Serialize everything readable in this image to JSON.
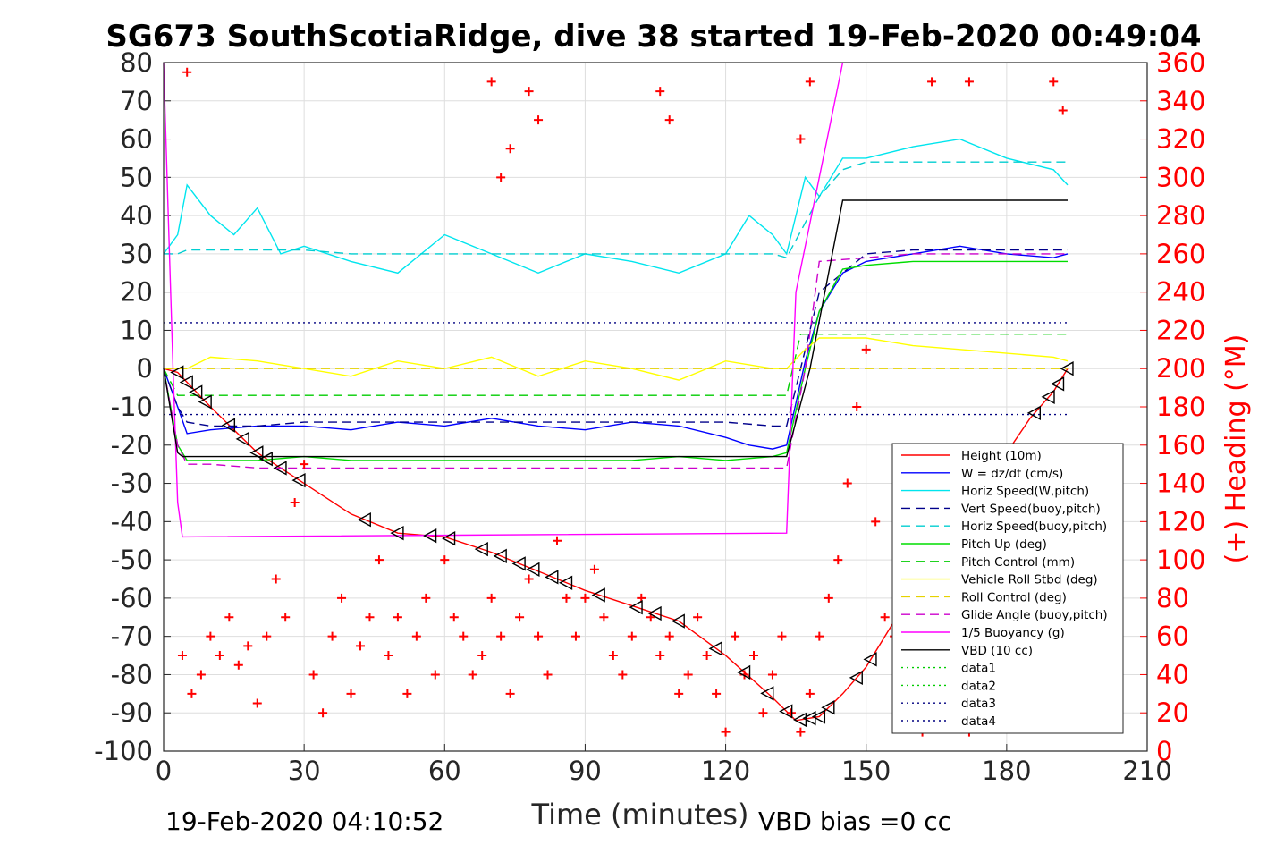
{
  "chart_data": {
    "type": "line",
    "title": "SG673 SouthScotiaRidge, dive 38 started 19-Feb-2020 00:49:04",
    "xlabel": "Time (minutes)",
    "ylabel_right": "(+) Heading (°M)",
    "xlim": [
      0,
      210
    ],
    "ylim": [
      -100,
      80
    ],
    "ylim_right": [
      0,
      360
    ],
    "xticks": [
      "0",
      "30",
      "60",
      "90",
      "120",
      "150",
      "180",
      "210"
    ],
    "yticks": [
      "80",
      "70",
      "60",
      "50",
      "40",
      "30",
      "20",
      "10",
      "0",
      "-10",
      "-20",
      "-30",
      "-40",
      "-50",
      "-60",
      "-70",
      "-80",
      "-90",
      "-100"
    ],
    "yticks_right": [
      "360",
      "340",
      "320",
      "300",
      "280",
      "260",
      "240",
      "220",
      "200",
      "180",
      "160",
      "140",
      "120",
      "100",
      "80",
      "60",
      "40",
      "20",
      "0"
    ],
    "grid": true,
    "legend_position": "lower-right",
    "footer_left": "19-Feb-2020 04:10:52",
    "footer_right": "VBD bias =0 cc",
    "series": [
      {
        "name": "Height (10m)",
        "color": "#ff0000",
        "style": "solid",
        "x": [
          0,
          3,
          10,
          20,
          30,
          40,
          50,
          60,
          70,
          80,
          90,
          100,
          110,
          120,
          130,
          135,
          140,
          145,
          150,
          160,
          170,
          180,
          185,
          190,
          193
        ],
        "y": [
          0,
          -1,
          -10,
          -22,
          -30,
          -38,
          -43,
          -44,
          -48,
          -53,
          -58,
          -62,
          -66,
          -75,
          -86,
          -92,
          -91,
          -85,
          -78,
          -58,
          -40,
          -22,
          -13,
          -6,
          0
        ]
      },
      {
        "name": "W = dz/dt (cm/s)",
        "color": "#0000ff",
        "style": "solid",
        "x": [
          0,
          3,
          5,
          10,
          20,
          30,
          40,
          50,
          60,
          70,
          80,
          90,
          100,
          110,
          120,
          125,
          130,
          133,
          137,
          140,
          145,
          150,
          160,
          170,
          180,
          190,
          193
        ],
        "y": [
          0,
          -10,
          -17,
          -16,
          -15,
          -15,
          -16,
          -14,
          -15,
          -13,
          -15,
          -16,
          -14,
          -15,
          -18,
          -20,
          -21,
          -20,
          2,
          15,
          25,
          28,
          30,
          32,
          30,
          29,
          30
        ]
      },
      {
        "name": "Horiz Speed(W,pitch)",
        "color": "#00e5ee",
        "style": "solid",
        "x": [
          0,
          3,
          5,
          10,
          15,
          20,
          25,
          30,
          40,
          50,
          60,
          70,
          80,
          90,
          100,
          110,
          120,
          125,
          130,
          133,
          137,
          140,
          145,
          150,
          160,
          170,
          180,
          190,
          193
        ],
        "y": [
          30,
          35,
          48,
          40,
          35,
          42,
          30,
          32,
          28,
          25,
          35,
          30,
          25,
          30,
          28,
          25,
          30,
          40,
          35,
          30,
          50,
          45,
          55,
          55,
          58,
          60,
          55,
          52,
          48
        ]
      },
      {
        "name": "Vert Speed(buoy,pitch)",
        "color": "#00008b",
        "style": "dashed",
        "x": [
          0,
          3,
          5,
          10,
          20,
          30,
          40,
          50,
          60,
          70,
          80,
          90,
          100,
          110,
          120,
          130,
          133,
          140,
          150,
          160,
          170,
          180,
          190,
          193
        ],
        "y": [
          0,
          -10,
          -14,
          -15,
          -15,
          -14,
          -14,
          -14,
          -14,
          -14,
          -14,
          -14,
          -14,
          -14,
          -14,
          -15,
          -15,
          20,
          30,
          31,
          31,
          31,
          31,
          31
        ]
      },
      {
        "name": "Horiz Speed(buoy,pitch)",
        "color": "#00ced1",
        "style": "dashed",
        "x": [
          0,
          3,
          5,
          10,
          20,
          30,
          40,
          50,
          60,
          70,
          80,
          90,
          100,
          110,
          120,
          130,
          133,
          140,
          145,
          150,
          160,
          170,
          180,
          190,
          193
        ],
        "y": [
          30,
          30,
          31,
          31,
          31,
          31,
          30,
          30,
          30,
          30,
          30,
          30,
          30,
          30,
          30,
          30,
          29,
          45,
          52,
          54,
          54,
          54,
          54,
          54,
          54
        ]
      },
      {
        "name": "Pitch Up (deg)",
        "color": "#00dd00",
        "style": "solid",
        "x": [
          0,
          3,
          5,
          10,
          20,
          30,
          40,
          50,
          60,
          70,
          80,
          90,
          100,
          110,
          120,
          130,
          133,
          137,
          140,
          145,
          150,
          160,
          170,
          180,
          190,
          193
        ],
        "y": [
          0,
          -20,
          -24,
          -24,
          -24,
          -23,
          -24,
          -24,
          -24,
          -24,
          -24,
          -24,
          -24,
          -23,
          -24,
          -23,
          -22,
          0,
          15,
          26,
          27,
          28,
          28,
          28,
          28,
          28
        ]
      },
      {
        "name": "Pitch Control (mm)",
        "color": "#00cc00",
        "style": "dashed",
        "x": [
          0,
          3,
          133,
          136,
          193
        ],
        "y": [
          0,
          -7,
          -7,
          9,
          9
        ]
      },
      {
        "name": "Vehicle Roll Stbd (deg)",
        "color": "#ffff00",
        "style": "solid",
        "x": [
          0,
          5,
          10,
          20,
          30,
          40,
          50,
          60,
          70,
          80,
          90,
          100,
          110,
          120,
          130,
          133,
          137,
          140,
          150,
          160,
          170,
          180,
          190,
          193
        ],
        "y": [
          0,
          0,
          3,
          2,
          0,
          -2,
          2,
          0,
          3,
          -2,
          2,
          0,
          -3,
          2,
          0,
          0,
          5,
          8,
          8,
          6,
          5,
          4,
          3,
          2
        ]
      },
      {
        "name": "Roll Control (deg)",
        "color": "#e6d200",
        "style": "dashed",
        "x": [
          0,
          193
        ],
        "y": [
          0,
          0
        ]
      },
      {
        "name": "Glide Angle (buoy,pitch)",
        "color": "#cc00cc",
        "style": "dashed",
        "x": [
          0,
          3,
          5,
          10,
          20,
          30,
          40,
          50,
          60,
          70,
          80,
          90,
          100,
          110,
          120,
          130,
          133,
          137,
          140,
          150,
          160,
          170,
          180,
          190,
          193
        ],
        "y": [
          0,
          -20,
          -25,
          -25,
          -26,
          -26,
          -26,
          -26,
          -26,
          -26,
          -26,
          -26,
          -26,
          -26,
          -26,
          -26,
          -26,
          0,
          28,
          29,
          30,
          30,
          30,
          30,
          30
        ]
      },
      {
        "name": "1/5 Buoyancy (g)",
        "color": "#ff00ff",
        "style": "solid",
        "x": [
          0,
          1,
          2,
          3,
          4,
          133,
          135,
          140,
          145
        ],
        "y": [
          80,
          40,
          0,
          -35,
          -44,
          -43,
          20,
          50,
          80
        ]
      },
      {
        "name": "VBD (10 cc)",
        "color": "#000000",
        "style": "solid",
        "x": [
          0,
          3,
          4,
          133,
          138,
          145,
          193
        ],
        "y": [
          0,
          -22,
          -23,
          -23,
          0,
          44,
          44
        ]
      },
      {
        "name": "data1",
        "color": "#00cc00",
        "style": "dotted",
        "x": [],
        "y": []
      },
      {
        "name": "data2",
        "color": "#00cc00",
        "style": "dotted",
        "x": [],
        "y": []
      },
      {
        "name": "data3",
        "color": "#000080",
        "style": "dotted",
        "x": [
          0,
          193
        ],
        "y": [
          -12,
          -12
        ]
      },
      {
        "name": "data4",
        "color": "#000080",
        "style": "dotted",
        "x": [
          0,
          193
        ],
        "y": [
          12,
          12
        ]
      }
    ],
    "heading_series": {
      "color": "#ff0000",
      "marker": "+",
      "axis": "right",
      "x": [
        4,
        6,
        8,
        10,
        12,
        14,
        16,
        18,
        20,
        22,
        24,
        26,
        28,
        30,
        32,
        34,
        36,
        38,
        40,
        42,
        44,
        46,
        48,
        50,
        52,
        54,
        56,
        58,
        60,
        62,
        64,
        66,
        68,
        70,
        72,
        74,
        76,
        78,
        80,
        82,
        84,
        86,
        88,
        90,
        92,
        94,
        96,
        98,
        100,
        102,
        104,
        106,
        108,
        110,
        112,
        114,
        116,
        118,
        120,
        122,
        124,
        126,
        128,
        130,
        132,
        134,
        136,
        138,
        140,
        142,
        144,
        146,
        148,
        150,
        152,
        154,
        156,
        158,
        160,
        162,
        164,
        166,
        168,
        170,
        172,
        174,
        176,
        178,
        180,
        182,
        184,
        186,
        188,
        190,
        192
      ],
      "y": [
        50,
        30,
        40,
        60,
        50,
        70,
        45,
        55,
        25,
        60,
        90,
        70,
        130,
        150,
        40,
        20,
        60,
        80,
        30,
        55,
        70,
        100,
        50,
        70,
        30,
        60,
        80,
        40,
        100,
        70,
        60,
        40,
        50,
        80,
        60,
        30,
        70,
        90,
        60,
        40,
        110,
        80,
        60,
        80,
        95,
        70,
        50,
        40,
        60,
        80,
        70,
        50,
        60,
        30,
        40,
        70,
        50,
        30,
        10,
        60,
        40,
        50,
        20,
        40,
        60,
        20,
        10,
        30,
        60,
        80,
        100,
        140,
        180,
        210,
        120,
        70,
        60,
        40,
        20,
        10,
        30,
        60,
        40,
        20,
        10,
        40,
        30,
        50,
        40,
        30,
        20,
        40,
        30,
        50,
        30
      ],
      "outliers_x": [
        5,
        70,
        72,
        74,
        78,
        80,
        106,
        108,
        136,
        138,
        164,
        172,
        190,
        192
      ],
      "outliers_y": [
        355,
        350,
        300,
        315,
        345,
        330,
        345,
        330,
        320,
        350,
        350,
        350,
        350,
        335
      ]
    },
    "markers": {
      "color": "#000000",
      "shape": "triangle",
      "series": "Height (10m)",
      "x": [
        3,
        5,
        7,
        9,
        14,
        17,
        20,
        22,
        25,
        29,
        43,
        50,
        57,
        61,
        68,
        72,
        76,
        79,
        83,
        86,
        93,
        101,
        105,
        110,
        118,
        124,
        129,
        133,
        136,
        138,
        140,
        142,
        148,
        151,
        186,
        189,
        191,
        193
      ]
    }
  }
}
